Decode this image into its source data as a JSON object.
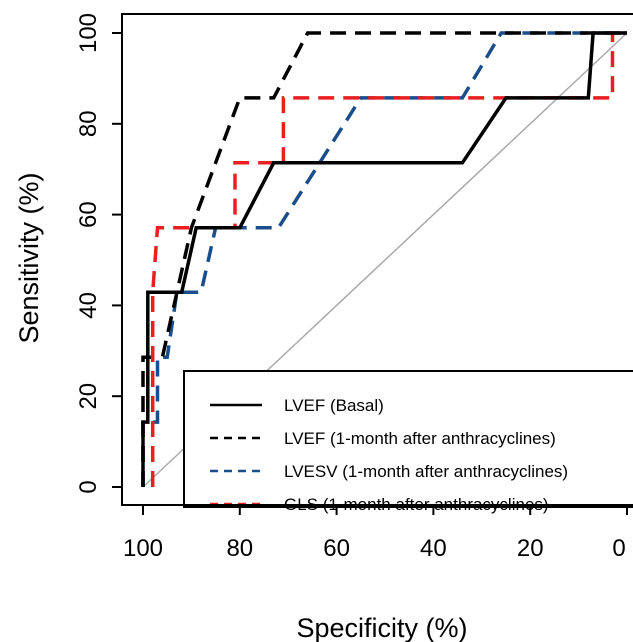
{
  "chart_data": {
    "type": "line",
    "title": "",
    "xlabel": "Specificity (%)",
    "ylabel": "Sensitivity (%)",
    "xlim": [
      100,
      0
    ],
    "ylim": [
      0,
      100
    ],
    "x_reversed": true,
    "x_ticks": [
      "100",
      "80",
      "60",
      "40",
      "20",
      "0"
    ],
    "y_ticks": [
      "0",
      "20",
      "40",
      "60",
      "80",
      "100"
    ],
    "grid": false,
    "legend_position": "bottom-right",
    "reference_line": {
      "from": [
        100,
        0
      ],
      "to": [
        0,
        100
      ],
      "color": "#aaaaaa"
    },
    "series": [
      {
        "name": "LVEF (Basal)",
        "color": "#000000",
        "dash": "solid",
        "points": [
          [
            100,
            0
          ],
          [
            100,
            14.3
          ],
          [
            99,
            14.3
          ],
          [
            99,
            42.9
          ],
          [
            92,
            42.9
          ],
          [
            89,
            57.1
          ],
          [
            80,
            57.1
          ],
          [
            73,
            71.4
          ],
          [
            34,
            71.4
          ],
          [
            25,
            85.7
          ],
          [
            8,
            85.7
          ],
          [
            7,
            100
          ],
          [
            0,
            100
          ]
        ]
      },
      {
        "name": "LVEF (1-month after anthracyclines)",
        "color": "#000000",
        "dash": "dashed",
        "points": [
          [
            100,
            0
          ],
          [
            100,
            28.6
          ],
          [
            96,
            28.6
          ],
          [
            90,
            57.1
          ],
          [
            80,
            85.7
          ],
          [
            73,
            85.7
          ],
          [
            66,
            100
          ],
          [
            0,
            100
          ]
        ]
      },
      {
        "name": "LVESV (1-month after anthracyclines)",
        "color": "#1a4e8a",
        "dash": "dashed",
        "points": [
          [
            100,
            0
          ],
          [
            100,
            14.3
          ],
          [
            97,
            14.3
          ],
          [
            97,
            28.6
          ],
          [
            95,
            28.6
          ],
          [
            93,
            42.9
          ],
          [
            88,
            42.9
          ],
          [
            85,
            57.1
          ],
          [
            72,
            57.1
          ],
          [
            55,
            85.7
          ],
          [
            34,
            85.7
          ],
          [
            26,
            100
          ],
          [
            0,
            100
          ]
        ]
      },
      {
        "name": "GLS (1-month after anthracyclines)",
        "color": "#e8201f",
        "dash": "dashed",
        "points": [
          [
            98,
            0
          ],
          [
            98,
            42.9
          ],
          [
            97,
            57.1
          ],
          [
            81,
            57.1
          ],
          [
            81,
            71.4
          ],
          [
            71,
            71.4
          ],
          [
            71,
            85.7
          ],
          [
            3,
            85.7
          ],
          [
            3,
            100
          ],
          [
            0,
            100
          ]
        ]
      }
    ]
  }
}
